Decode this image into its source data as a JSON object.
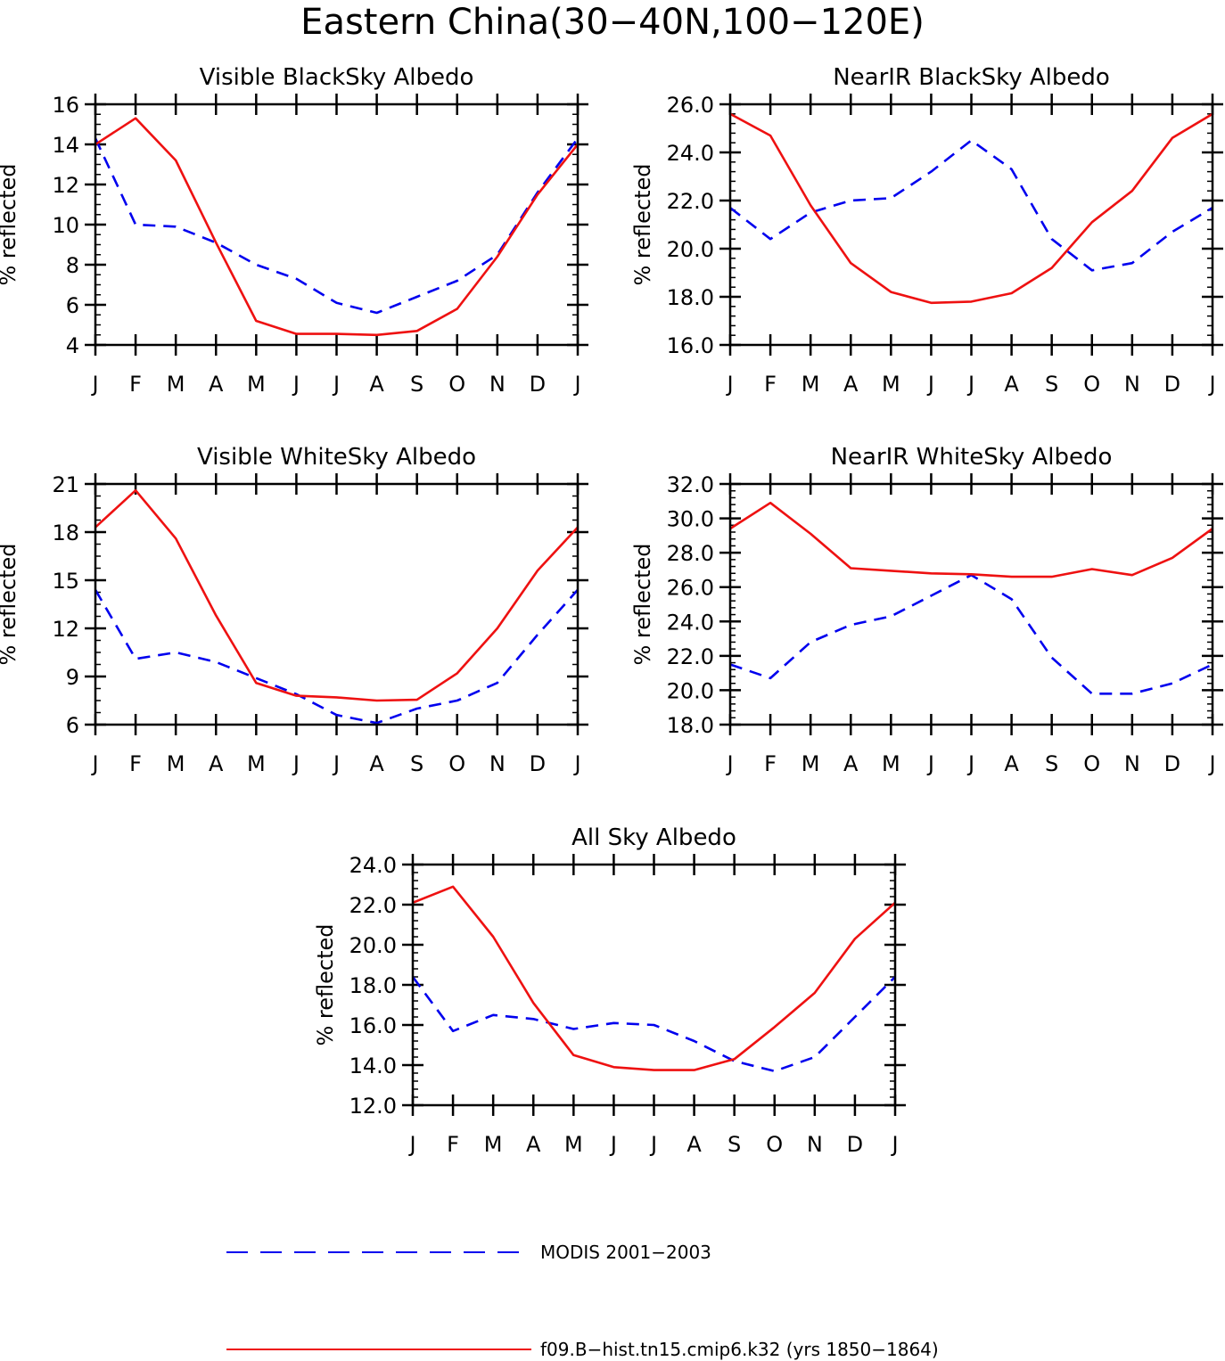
{
  "figure_title": "Eastern China(30−40N,100−120E)",
  "legend": {
    "items": [
      {
        "label": "MODIS 2001−2003",
        "color": "#0000ee",
        "dash": "dashed"
      },
      {
        "label": "f09.B−hist.tn15.cmip6.k32 (yrs 1850−1864)",
        "color": "#ee1111",
        "dash": "solid"
      }
    ]
  },
  "chart_data": [
    {
      "type": "line",
      "title": "Visible BlackSky Albedo",
      "ylabel": "% reflected",
      "xlabel": "",
      "categories": [
        "J",
        "F",
        "M",
        "A",
        "M",
        "J",
        "J",
        "A",
        "S",
        "O",
        "N",
        "D",
        "J"
      ],
      "ylim": [
        4,
        16
      ],
      "yticks": [
        4,
        6,
        8,
        10,
        12,
        14,
        16
      ],
      "ytick_labels": [
        "4",
        "6",
        "8",
        "10",
        "12",
        "14",
        "16"
      ],
      "yminor": 0.5,
      "grid": false,
      "series": [
        {
          "name": "MODIS 2001−2003",
          "color": "#0000ee",
          "dash": "dashed",
          "values": [
            14.3,
            10.0,
            9.9,
            9.1,
            8.0,
            7.3,
            6.1,
            5.6,
            6.4,
            7.2,
            8.5,
            11.6,
            14.3
          ]
        },
        {
          "name": "f09.B−hist.tn15.cmip6.k32 (yrs 1850−1864)",
          "color": "#ee1111",
          "dash": "solid",
          "values": [
            14.0,
            15.3,
            13.2,
            9.1,
            5.2,
            4.55,
            4.55,
            4.5,
            4.7,
            5.8,
            8.4,
            11.5,
            14.0
          ]
        }
      ]
    },
    {
      "type": "line",
      "title": "NearIR BlackSky Albedo",
      "ylabel": "% reflected",
      "xlabel": "",
      "categories": [
        "J",
        "F",
        "M",
        "A",
        "M",
        "J",
        "J",
        "A",
        "S",
        "O",
        "N",
        "D",
        "J"
      ],
      "ylim": [
        16,
        26
      ],
      "yticks": [
        16,
        18,
        20,
        22,
        24,
        26
      ],
      "ytick_labels": [
        "16.0",
        "18.0",
        "20.0",
        "22.0",
        "24.0",
        "26.0"
      ],
      "yminor": 0.4,
      "grid": false,
      "series": [
        {
          "name": "MODIS 2001−2003",
          "color": "#0000ee",
          "dash": "dashed",
          "values": [
            21.7,
            20.4,
            21.5,
            22.0,
            22.1,
            23.2,
            24.5,
            23.3,
            20.4,
            19.1,
            19.4,
            20.7,
            21.7
          ]
        },
        {
          "name": "f09.B−hist.tn15.cmip6.k32 (yrs 1850−1864)",
          "color": "#ee1111",
          "dash": "solid",
          "values": [
            25.6,
            24.7,
            21.8,
            19.4,
            18.2,
            17.75,
            17.8,
            18.15,
            19.2,
            21.1,
            22.4,
            24.6,
            25.6
          ]
        }
      ]
    },
    {
      "type": "line",
      "title": "Visible WhiteSky Albedo",
      "ylabel": "% reflected",
      "xlabel": "",
      "categories": [
        "J",
        "F",
        "M",
        "A",
        "M",
        "J",
        "J",
        "A",
        "S",
        "O",
        "N",
        "D",
        "J"
      ],
      "ylim": [
        6,
        21
      ],
      "yticks": [
        6,
        9,
        12,
        15,
        18,
        21
      ],
      "ytick_labels": [
        "6",
        "9",
        "12",
        "15",
        "18",
        "21"
      ],
      "yminor": 0.75,
      "grid": false,
      "series": [
        {
          "name": "MODIS 2001−2003",
          "color": "#0000ee",
          "dash": "dashed",
          "values": [
            14.4,
            10.1,
            10.5,
            9.9,
            8.9,
            7.9,
            6.6,
            6.1,
            7.0,
            7.5,
            8.6,
            11.6,
            14.4
          ]
        },
        {
          "name": "f09.B−hist.tn15.cmip6.k32 (yrs 1850−1864)",
          "color": "#ee1111",
          "dash": "solid",
          "values": [
            18.3,
            20.6,
            17.6,
            12.8,
            8.6,
            7.8,
            7.7,
            7.5,
            7.55,
            9.2,
            12.0,
            15.6,
            18.3
          ]
        }
      ]
    },
    {
      "type": "line",
      "title": "NearIR WhiteSky Albedo",
      "ylabel": "% reflected",
      "xlabel": "",
      "categories": [
        "J",
        "F",
        "M",
        "A",
        "M",
        "J",
        "J",
        "A",
        "S",
        "O",
        "N",
        "D",
        "J"
      ],
      "ylim": [
        18,
        32
      ],
      "yticks": [
        18,
        20,
        22,
        24,
        26,
        28,
        30,
        32
      ],
      "ytick_labels": [
        "18.0",
        "20.0",
        "22.0",
        "24.0",
        "26.0",
        "28.0",
        "30.0",
        "32.0"
      ],
      "yminor": 0.4,
      "grid": false,
      "series": [
        {
          "name": "MODIS 2001−2003",
          "color": "#0000ee",
          "dash": "dashed",
          "values": [
            21.5,
            20.7,
            22.8,
            23.8,
            24.3,
            25.5,
            26.7,
            25.3,
            21.9,
            19.8,
            19.8,
            20.4,
            21.5
          ]
        },
        {
          "name": "f09.B−hist.tn15.cmip6.k32 (yrs 1850−1864)",
          "color": "#ee1111",
          "dash": "solid",
          "values": [
            29.4,
            30.9,
            29.1,
            27.1,
            26.95,
            26.8,
            26.75,
            26.6,
            26.6,
            27.05,
            26.7,
            27.7,
            29.4
          ]
        }
      ]
    },
    {
      "type": "line",
      "title": "All Sky Albedo",
      "ylabel": "% reflected",
      "xlabel": "",
      "categories": [
        "J",
        "F",
        "M",
        "A",
        "M",
        "J",
        "J",
        "A",
        "S",
        "O",
        "N",
        "D",
        "J"
      ],
      "ylim": [
        12,
        24
      ],
      "yticks": [
        12,
        14,
        16,
        18,
        20,
        22,
        24
      ],
      "ytick_labels": [
        "12.0",
        "14.0",
        "16.0",
        "18.0",
        "20.0",
        "22.0",
        "24.0"
      ],
      "yminor": 0.4,
      "grid": false,
      "series": [
        {
          "name": "MODIS 2001−2003",
          "color": "#0000ee",
          "dash": "dashed",
          "values": [
            18.4,
            15.7,
            16.5,
            16.3,
            15.8,
            16.1,
            16.0,
            15.2,
            14.2,
            13.7,
            14.4,
            16.4,
            18.4
          ]
        },
        {
          "name": "f09.B−hist.tn15.cmip6.k32 (yrs 1850−1864)",
          "color": "#ee1111",
          "dash": "solid",
          "values": [
            22.1,
            22.9,
            20.4,
            17.1,
            14.5,
            13.9,
            13.75,
            13.75,
            14.3,
            15.9,
            17.6,
            20.3,
            22.1
          ]
        }
      ]
    }
  ]
}
